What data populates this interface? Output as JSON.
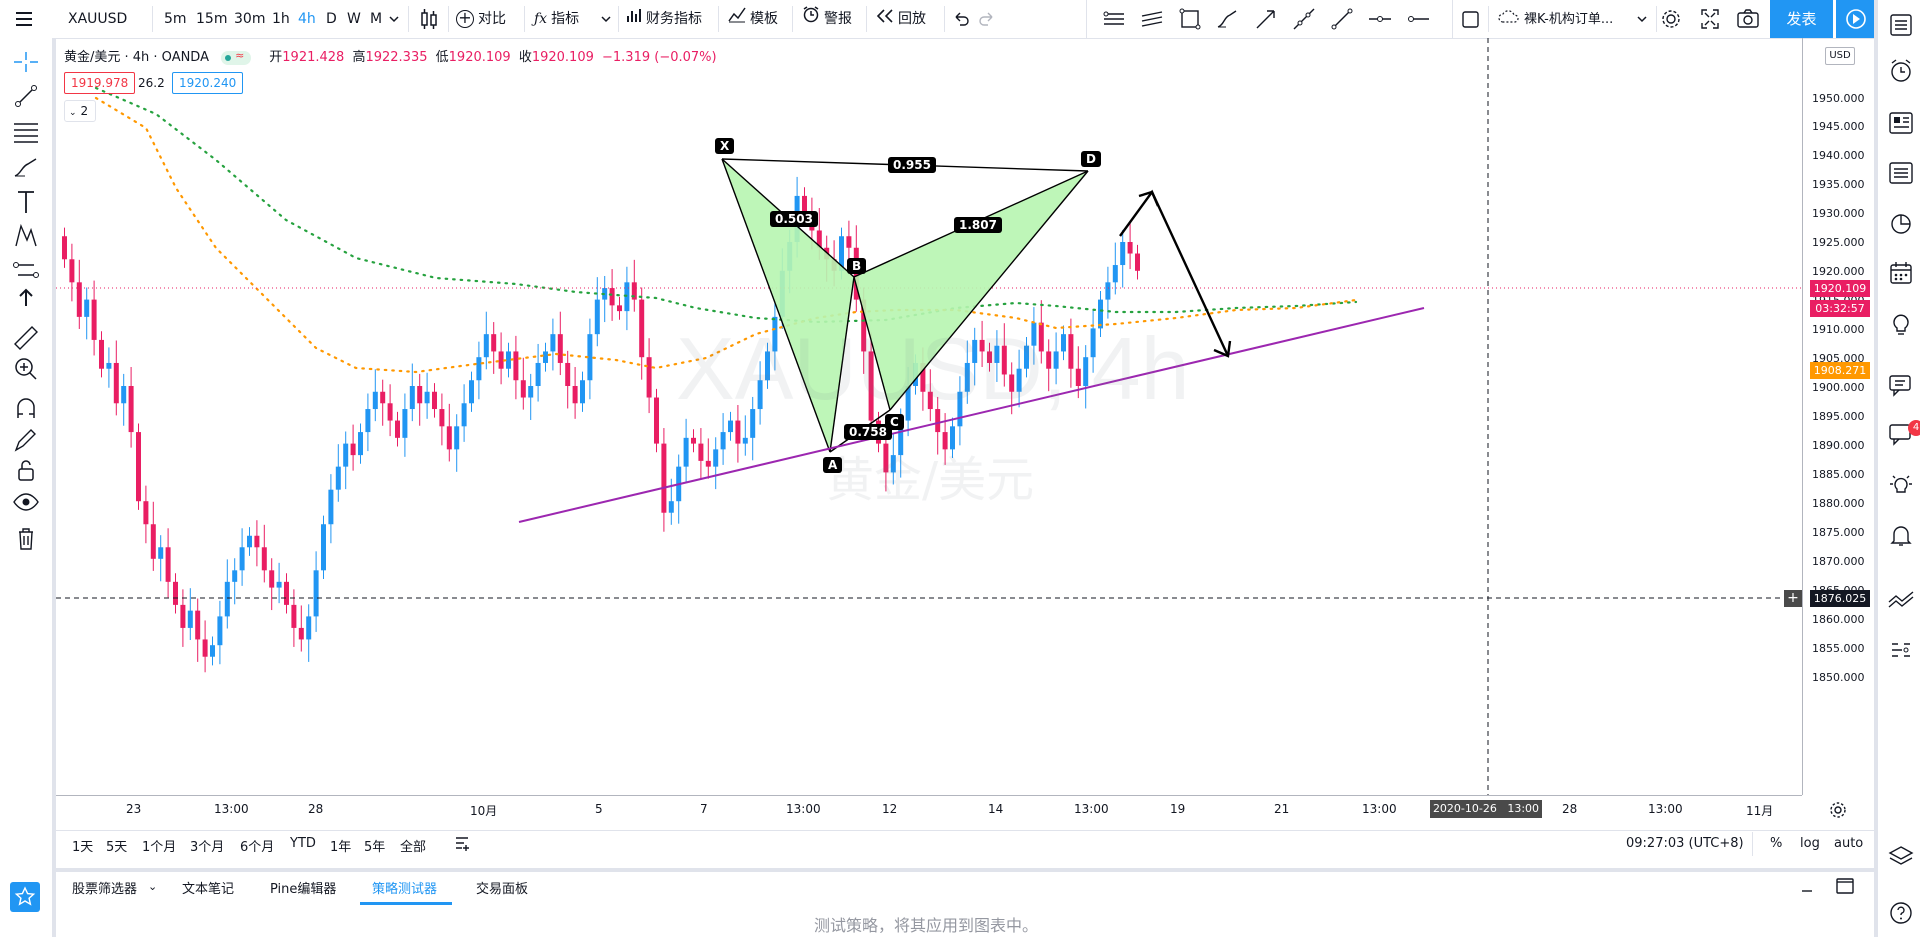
{
  "topbar": {
    "symbol": "XAUUSD",
    "timeframes": [
      "5m",
      "15m",
      "30m",
      "1h",
      "4h",
      "D",
      "W",
      "M"
    ],
    "active_timeframe": "4h",
    "compare_label": "对比",
    "indicators_label": "指标",
    "financials_label": "财务指标",
    "templates_label": "模板",
    "alert_label": "警报",
    "replay_label": "回放",
    "layout_name": "裸K-机构订单...",
    "publish_label": "发表"
  },
  "legend": {
    "title": "黄金/美元 · 4h · OANDA",
    "open_label": "开",
    "open": "1921.428",
    "high_label": "高",
    "high": "1922.335",
    "low_label": "低",
    "low": "1920.109",
    "close_label": "收",
    "close": "1920.109",
    "change": "−1.319 (−0.07%)",
    "bid": "1919.978",
    "spread": "26.2",
    "ask": "1920.240",
    "indicator_count": "2"
  },
  "watermark": {
    "symbol": "XAUUSD, 4h",
    "name": "黄金/美元"
  },
  "price_axis": {
    "currency": "USD",
    "ticks": [
      "1950.000",
      "1945.000",
      "1940.000",
      "1935.000",
      "1930.000",
      "1925.000",
      "1920.000",
      "1915.000",
      "1910.000",
      "1905.000",
      "1900.000",
      "1895.000",
      "1890.000",
      "1885.000",
      "1880.000",
      "1875.000",
      "1870.000",
      "1865.000",
      "1860.000",
      "1855.000",
      "1850.000"
    ],
    "last_price": "1920.109",
    "countdown": "03:32:57",
    "ma_price": "1908.271",
    "crosshair_price": "1876.025"
  },
  "time_axis": {
    "ticks": [
      "23",
      "13:00",
      "28",
      "10月",
      "5",
      "7",
      "13:00",
      "12",
      "14",
      "13:00",
      "19",
      "21",
      "13:00",
      "28",
      "13:00",
      "11月"
    ],
    "crosshair_time": "2020-10-26   13:00"
  },
  "pattern": {
    "points": [
      "X",
      "A",
      "B",
      "C",
      "D"
    ],
    "ratios": [
      "0.955",
      "0.503",
      "1.807",
      "0.758"
    ]
  },
  "range_bar": {
    "ranges": [
      "1天",
      "5天",
      "1个月",
      "3个月",
      "6个月",
      "YTD",
      "1年",
      "5年",
      "全部"
    ],
    "clock": "09:27:03 (UTC+8)",
    "percent": "%",
    "log": "log",
    "auto": "auto"
  },
  "bottom_tabs": {
    "tabs": [
      "股票筛选器",
      "文本笔记",
      "Pine编辑器",
      "策略测试器",
      "交易面板"
    ],
    "active": "策略测试器",
    "empty_message": "测试策略，将其应用到图表中。"
  },
  "colors": {
    "up": "#2196f3",
    "down": "#e91e63",
    "harmonic_fill": "#b7f5b0",
    "trendline": "#9c27b0",
    "ma_green": "#26a23f",
    "ma_orange": "#ff9800",
    "accent": "#2196f3"
  },
  "right_toolbar": {
    "chat_badge": "4"
  }
}
